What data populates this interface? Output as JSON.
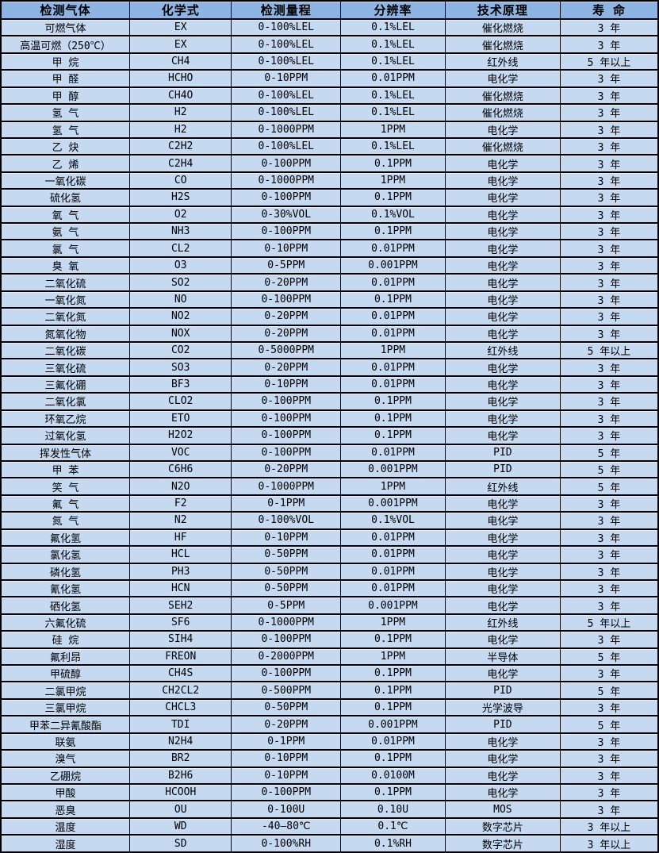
{
  "table": {
    "colors": {
      "header_bg": "#8DB4E2",
      "row_bg": "#C5D9F1",
      "border": "#000000",
      "text": "#000000"
    },
    "headers": [
      "检测气体",
      "化学式",
      "检测量程",
      "分辨率",
      "技术原理",
      "寿 命"
    ],
    "rows": [
      [
        "可燃气体",
        "EX",
        "0-100%LEL",
        "0.1%LEL",
        "催化燃烧",
        "3 年"
      ],
      [
        "高温可燃（250℃）",
        "EX",
        "0-100%LEL",
        "0.1%LEL",
        "催化燃烧",
        "3 年"
      ],
      [
        "甲 烷",
        "CH4",
        "0-100%LEL",
        "0.1%LEL",
        "红外线",
        "5 年以上"
      ],
      [
        "甲 醛",
        "HCHO",
        "0-10PPM",
        "0.01PPM",
        "电化学",
        "3 年"
      ],
      [
        "甲 醇",
        "CH4O",
        "0-100%LEL",
        "0.1%LEL",
        "催化燃烧",
        "3 年"
      ],
      [
        "氢 气",
        "H2",
        "0-100%LEL",
        "0.1%LEL",
        "催化燃烧",
        "3 年"
      ],
      [
        "氢 气",
        "H2",
        "0-1000PPM",
        "1PPM",
        "电化学",
        "3 年"
      ],
      [
        "乙 炔",
        "C2H2",
        "0-100%LEL",
        "0.1%LEL",
        "催化燃烧",
        "3 年"
      ],
      [
        "乙 烯",
        "C2H4",
        "0-100PPM",
        "0.1PPM",
        "电化学",
        "3 年"
      ],
      [
        "一氧化碳",
        "CO",
        "0-1000PPM",
        "1PPM",
        "电化学",
        "3 年"
      ],
      [
        "硫化氢",
        "H2S",
        "0-100PPM",
        "0.1PPM",
        "电化学",
        "3 年"
      ],
      [
        "氧 气",
        "O2",
        "0-30%VOL",
        "0.1%VOL",
        "电化学",
        "3 年"
      ],
      [
        "氨 气",
        "NH3",
        "0-100PPM",
        "0.1PPM",
        "电化学",
        "3 年"
      ],
      [
        "氯 气",
        "CL2",
        "0-10PPM",
        "0.01PPM",
        "电化学",
        "3 年"
      ],
      [
        "臭 氧",
        "O3",
        "0-5PPM",
        "0.001PPM",
        "电化学",
        "3 年"
      ],
      [
        "二氧化硫",
        "SO2",
        "0-20PPM",
        "0.01PPM",
        "电化学",
        "3 年"
      ],
      [
        "一氧化氮",
        "NO",
        "0-100PPM",
        "0.1PPM",
        "电化学",
        "3 年"
      ],
      [
        "二氧化氮",
        "NO2",
        "0-20PPM",
        "0.01PPM",
        "电化学",
        "3 年"
      ],
      [
        "氮氧化物",
        "NOX",
        "0-20PPM",
        "0.01PPM",
        "电化学",
        "3 年"
      ],
      [
        "二氧化碳",
        "CO2",
        "0-5000PPM",
        "1PPM",
        "红外线",
        "5 年以上"
      ],
      [
        "三氧化硫",
        "SO3",
        "0-20PPM",
        "0.01PPM",
        "电化学",
        "3 年"
      ],
      [
        "三氟化硼",
        "BF3",
        "0-10PPM",
        "0.01PPM",
        "电化学",
        "3 年"
      ],
      [
        "二氧化氯",
        "CLO2",
        "0-100PPM",
        "0.1PPM",
        "电化学",
        "3 年"
      ],
      [
        "环氧乙烷",
        "ETO",
        "0-100PPM",
        "0.1PPM",
        "电化学",
        "3 年"
      ],
      [
        "过氧化氢",
        "H2O2",
        "0-100PPM",
        "0.1PPM",
        "电化学",
        "3 年"
      ],
      [
        "挥发性气体",
        "VOC",
        "0-100PPM",
        "0.01PPM",
        "PID",
        "5 年"
      ],
      [
        "甲 苯",
        "C6H6",
        "0-20PPM",
        "0.001PPM",
        "PID",
        "5 年"
      ],
      [
        "笑 气",
        "N2O",
        "0-1000PPM",
        "1PPM",
        "红外线",
        "5 年"
      ],
      [
        "氟 气",
        "F2",
        "0-1PPM",
        "0.001PPM",
        "电化学",
        "3 年"
      ],
      [
        "氮 气",
        "N2",
        "0-100%VOL",
        "0.1%VOL",
        "电化学",
        "3 年"
      ],
      [
        "氟化氢",
        "HF",
        "0-10PPM",
        "0.01PPM",
        "电化学",
        "3 年"
      ],
      [
        "氯化氢",
        "HCL",
        "0-50PPM",
        "0.01PPM",
        "电化学",
        "3 年"
      ],
      [
        "磷化氢",
        "PH3",
        "0-50PPM",
        "0.01PPM",
        "电化学",
        "3 年"
      ],
      [
        "氰化氢",
        "HCN",
        "0-50PPM",
        "0.01PPM",
        "电化学",
        "3 年"
      ],
      [
        "硒化氢",
        "SEH2",
        "0-5PPM",
        "0.001PPM",
        "电化学",
        "3 年"
      ],
      [
        "六氟化硫",
        "SF6",
        "0-1000PPM",
        "1PPM",
        "红外线",
        "5 年以上"
      ],
      [
        "硅 烷",
        "SIH4",
        "0-100PPM",
        "0.1PPM",
        "电化学",
        "3 年"
      ],
      [
        "氟利昂",
        "FREON",
        "0-2000PPM",
        "1PPM",
        "半导体",
        "5 年"
      ],
      [
        "甲硫醇",
        "CH4S",
        "0-100PPM",
        "0.1PPM",
        "电化学",
        "3 年"
      ],
      [
        "二氯甲烷",
        "CH2CL2",
        "0-500PPM",
        "0.1PPM",
        "PID",
        "5 年"
      ],
      [
        "三氯甲烷",
        "CHCL3",
        "0-50PPM",
        "0.1PPM",
        "光学波导",
        "3 年"
      ],
      [
        "甲苯二异氰酸酯",
        "TDI",
        "0-20PPM",
        "0.001PPM",
        "PID",
        "5 年"
      ],
      [
        "联氨",
        "N2H4",
        "0-1PPM",
        "0.01PPM",
        "电化学",
        "3 年"
      ],
      [
        "溴气",
        "BR2",
        "0-10PPM",
        "0.1PPM",
        "电化学",
        "3 年"
      ],
      [
        "乙硼烷",
        "B2H6",
        "0-10PPM",
        "0.0100M",
        "电化学",
        "3 年"
      ],
      [
        "甲酸",
        "HCOOH",
        "0-100PPM",
        "0.1PPM",
        "电化学",
        "3 年"
      ],
      [
        "恶臭",
        "OU",
        "0-100U",
        "0.10U",
        "MOS",
        "3 年"
      ],
      [
        "温度",
        "WD",
        "-40—80℃",
        "0.1℃",
        "数字芯片",
        "3 年以上"
      ],
      [
        "湿度",
        "SD",
        "0-100%RH",
        "0.1%RH",
        "数字芯片",
        "3 年以上"
      ]
    ]
  }
}
